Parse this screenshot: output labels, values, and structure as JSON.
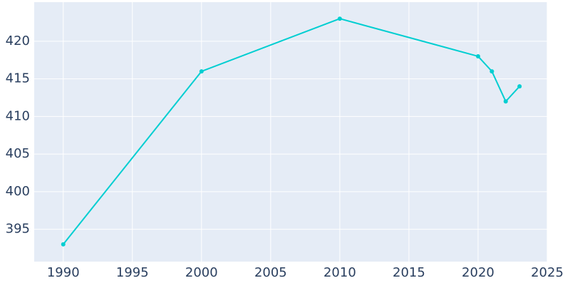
{
  "chart_data": {
    "type": "line",
    "x": [
      1990,
      2000,
      2010,
      2020,
      2021,
      2022,
      2023
    ],
    "series": [
      {
        "color": "#00ced1",
        "values": [
          393,
          416,
          423,
          418,
          416,
          412,
          414
        ]
      }
    ],
    "xlim": [
      1987.9,
      2025
    ],
    "xticks": [
      1990,
      1995,
      2000,
      2005,
      2010,
      2015,
      2020,
      2025
    ],
    "ylim": [
      390.7,
      425.2
    ],
    "yticks": [
      395,
      400,
      405,
      410,
      415,
      420
    ],
    "grid": true
  }
}
